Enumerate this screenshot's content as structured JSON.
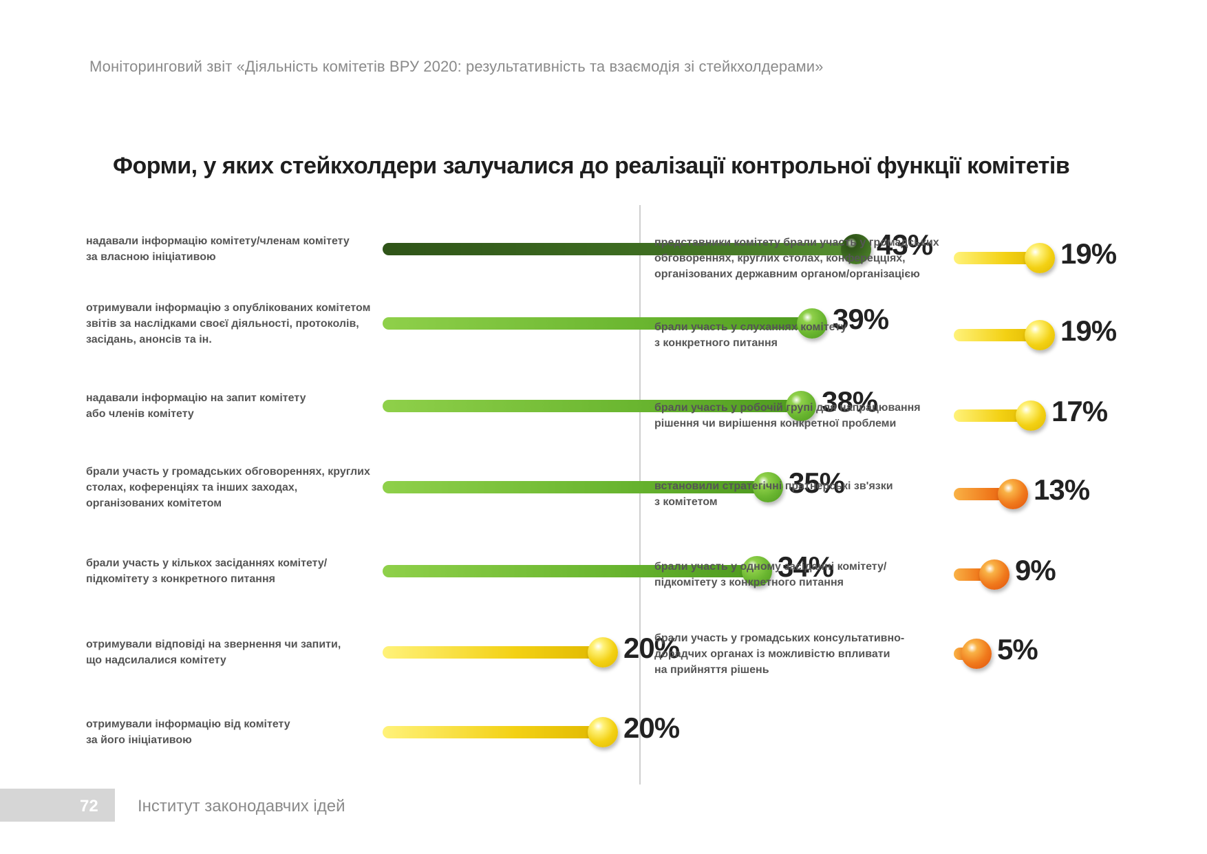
{
  "header": {
    "text": "Моніторинговий звіт «Діяльність комітетів ВРУ 2020: результативність та взаємодія зі стейкхолдерами»"
  },
  "footer": {
    "page_number": "72",
    "organization": "Інститут законодавчих ідей"
  },
  "colors": {
    "green_dark": "#3f6f22",
    "green": "#6ab630",
    "yellow": "#f3d114",
    "orange": "#f07a1c",
    "text_dark": "#222222",
    "text_label": "#555555"
  },
  "chart_data": {
    "type": "bar",
    "title": "Форми, у яких стейкхолдери залучалися до реалізації контрольної функції комітетів",
    "unit": "%",
    "columns": [
      {
        "items": [
          {
            "label_lines": [
              "надавали інформацію комітету/членам комітету",
              "за власною ініціативою"
            ],
            "value": 43,
            "value_label": "43%",
            "color": "green_dark"
          },
          {
            "label_lines": [
              "отримували інформацію з опублікованих комітетом",
              "звітів за наслідками своєї діяльності, протоколів,",
              "засідань, анонсів та ін."
            ],
            "value": 39,
            "value_label": "39%",
            "color": "green"
          },
          {
            "label_lines": [
              "надавали інформацію на запит комітету",
              "або членів комітету"
            ],
            "value": 38,
            "value_label": "38%",
            "color": "green"
          },
          {
            "label_lines": [
              "брали участь у громадських обговореннях, круглих",
              "столах, коференціях та інших заходах,",
              "організованих комітетом"
            ],
            "value": 35,
            "value_label": "35%",
            "color": "green"
          },
          {
            "label_lines": [
              "брали участь у кількох засіданнях комітету/",
              "підкомітету з конкретного питання"
            ],
            "value": 34,
            "value_label": "34%",
            "color": "green"
          },
          {
            "label_lines": [
              "отримували відповіді на звернення чи запити,",
              "що надсилалися комітету"
            ],
            "value": 20,
            "value_label": "20%",
            "color": "yellow"
          },
          {
            "label_lines": [
              "отримували інформацію від комітету",
              "за його ініціативою"
            ],
            "value": 20,
            "value_label": "20%",
            "color": "yellow"
          }
        ]
      },
      {
        "items": [
          {
            "label_lines": [
              "представники комітету брали участь у громадських",
              "обговореннях, круглих столах, конферецціях,",
              "організованих державним органом/організацією"
            ],
            "value": 19,
            "value_label": "19%",
            "color": "yellow"
          },
          {
            "label_lines": [
              "брали участь у слуханнях комітету",
              "з конкретного питання"
            ],
            "value": 19,
            "value_label": "19%",
            "color": "yellow"
          },
          {
            "label_lines": [
              "брали участь у робочій групі для напрацювання",
              "рішення чи вирішення конкретної проблеми"
            ],
            "value": 17,
            "value_label": "17%",
            "color": "yellow"
          },
          {
            "label_lines": [
              "встановили стратегічні пратнерські зв'язки",
              "з комітетом"
            ],
            "value": 13,
            "value_label": "13%",
            "color": "orange"
          },
          {
            "label_lines": [
              "брали участь у одному засіданні комітету/",
              "підкомітету з конкретного питання"
            ],
            "value": 9,
            "value_label": "9%",
            "color": "orange"
          },
          {
            "label_lines": [
              "брали участь у громадських консультативно-",
              "дорадчих органах із можливістю впливати",
              "на прийняття рішень"
            ],
            "value": 5,
            "value_label": "5%",
            "color": "orange"
          }
        ]
      }
    ]
  }
}
